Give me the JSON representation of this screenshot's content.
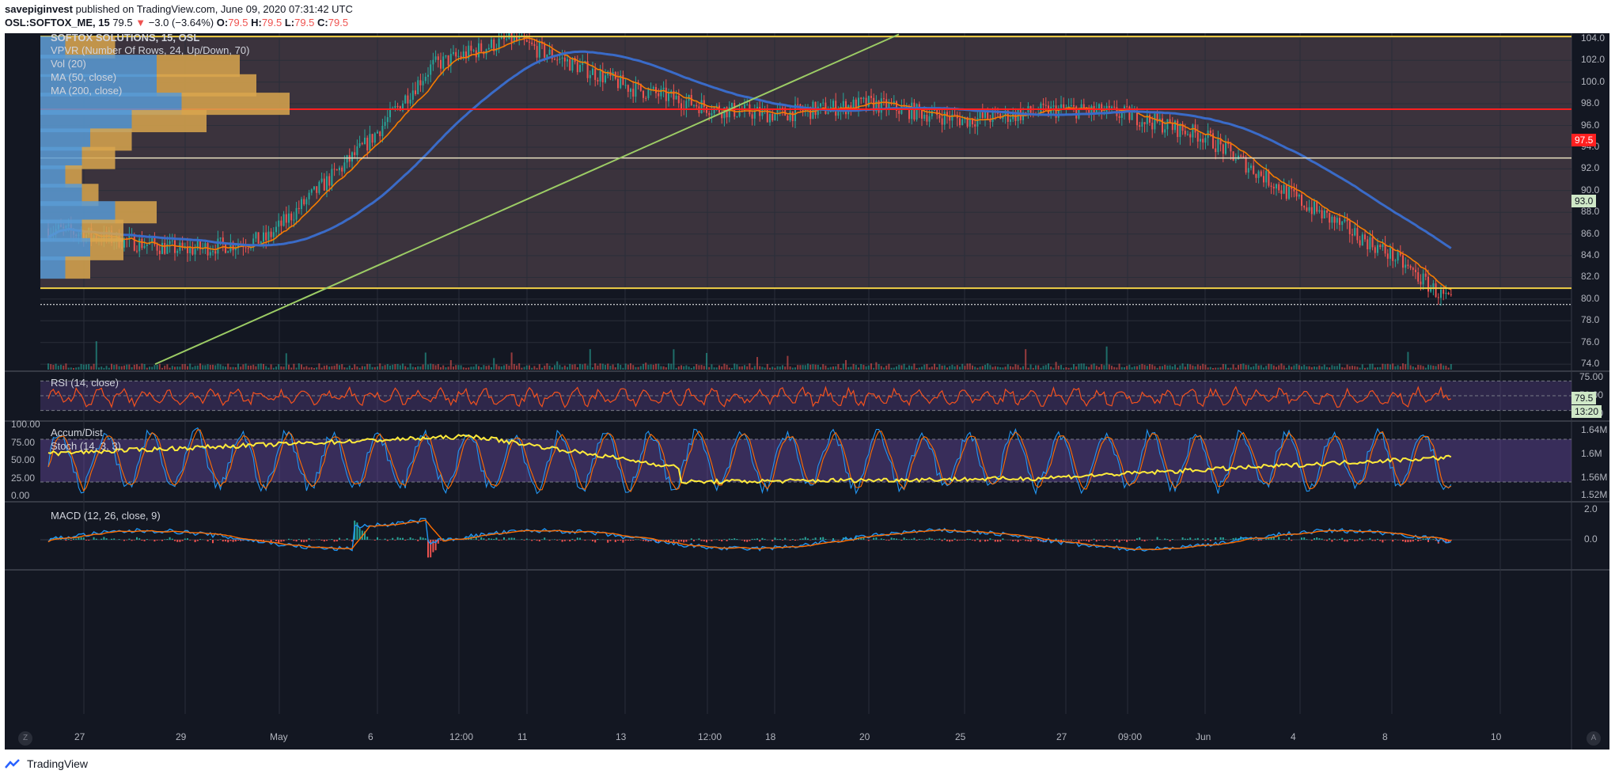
{
  "header": {
    "author": "savepiginvest",
    "published": " published on TradingView.com, June 09, 2020 07:31:42 UTC",
    "symbol": "OSL:SOFTOX_ME, 15",
    "last": "79.5",
    "change": "−3.0 (−3.64%)",
    "o": "79.5",
    "h": "79.5",
    "l": "79.5",
    "c": "79.5"
  },
  "legend": {
    "main": "SOFTOX SOLUTIONS, 15, OSL",
    "vpvr": "VPVR (Number Of Rows, 24, Up/Down, 70)",
    "vol": "Vol (20)",
    "ma50": "MA (50, close)",
    "ma200": "MA (200, close)",
    "rsi": "RSI (14, close)",
    "ad": "Accum/Dist",
    "stoch": "Stoch (14, 3, 3)",
    "macd": "MACD (12, 26, close, 9)"
  },
  "price_axis": [
    "104.0",
    "102.0",
    "100.0",
    "98.0",
    "96.0",
    "94.0",
    "92.0",
    "90.0",
    "88.0",
    "86.0",
    "84.0",
    "82.0",
    "80.0",
    "78.0",
    "76.0",
    "74.0"
  ],
  "price_tags": {
    "r1": "97.5",
    "r2": "93.0",
    "last": "79.5",
    "timer": "13:20"
  },
  "rsi_axis": [
    "75.00",
    "50.00",
    "25.00"
  ],
  "stoch_axis": [
    "100.00",
    "75.00",
    "50.00",
    "25.00",
    "0.00"
  ],
  "ad_axis": [
    "1.64M",
    "1.6M",
    "1.56M",
    "1.52M"
  ],
  "macd_axis": [
    "2.0",
    "0.0"
  ],
  "time_axis": [
    "27",
    "29",
    "May",
    "6",
    "12:00",
    "11",
    "13",
    "12:00",
    "18",
    "20",
    "25",
    "27",
    "09:00",
    "Jun",
    "4",
    "8",
    "10"
  ],
  "corners": {
    "left": "Z",
    "right": "A"
  },
  "footer": {
    "brand": "TradingView"
  },
  "colors": {
    "bg": "#131722",
    "up": "#26a69a",
    "down": "#ef5350",
    "ma50": "#f57c00",
    "ma200": "#3a6bc8",
    "trend": "#9ccc65",
    "resistance": "#ff2020",
    "support": "#f2d046",
    "vpvr_up": "#5b9bd5",
    "vpvr_down": "#d9a64e",
    "rsi": "#f4511e",
    "stoch_k": "#2196f3",
    "stoch_d": "#ff6d00",
    "ad": "#ffeb3b"
  },
  "chart_data": {
    "type": "candlestick",
    "symbol": "OSL:SOFTOX_ME",
    "interval": "15",
    "ylim": [
      73.5,
      104.5
    ],
    "levels": [
      {
        "name": "resistance",
        "value": 97.5
      },
      {
        "name": "level",
        "value": 93.0
      },
      {
        "name": "support",
        "value": 81.0
      },
      {
        "name": "top",
        "value": 104.2
      }
    ],
    "close_approx": [
      {
        "x": "27",
        "y": 86.5
      },
      {
        "x": "29",
        "y": 84.5
      },
      {
        "x": "May",
        "y": 85.5
      },
      {
        "x": "6",
        "y": 94.5
      },
      {
        "x": "12:00",
        "y": 101.5
      },
      {
        "x": "11",
        "y": 104.0
      },
      {
        "x": "13",
        "y": 99.5
      },
      {
        "x": "12:00",
        "y": 97.5
      },
      {
        "x": "18",
        "y": 97.0
      },
      {
        "x": "20",
        "y": 98.0
      },
      {
        "x": "25",
        "y": 96.5
      },
      {
        "x": "27",
        "y": 97.5
      },
      {
        "x": "09:00",
        "y": 97.0
      },
      {
        "x": "Jun",
        "y": 95.0
      },
      {
        "x": "4",
        "y": 89.0
      },
      {
        "x": "8",
        "y": 84.0
      },
      {
        "x": "last",
        "y": 79.5
      }
    ],
    "vpvr_rows": [
      {
        "price": 103.2,
        "up": 0.3,
        "down": 0.6
      },
      {
        "price": 101.5,
        "up": 1.4,
        "down": 1.0
      },
      {
        "price": 99.7,
        "up": 1.4,
        "down": 1.2
      },
      {
        "price": 98.0,
        "up": 1.7,
        "down": 1.3
      },
      {
        "price": 96.4,
        "up": 1.1,
        "down": 0.9
      },
      {
        "price": 94.7,
        "up": 0.6,
        "down": 0.5
      },
      {
        "price": 93.0,
        "up": 0.5,
        "down": 0.4
      },
      {
        "price": 91.3,
        "up": 0.3,
        "down": 0.2
      },
      {
        "price": 89.6,
        "up": 0.5,
        "down": 0.2
      },
      {
        "price": 88.0,
        "up": 0.9,
        "down": 0.5
      },
      {
        "price": 86.3,
        "up": 0.5,
        "down": 0.5
      },
      {
        "price": 84.6,
        "up": 0.6,
        "down": 0.4
      },
      {
        "price": 82.9,
        "up": 0.3,
        "down": 0.3
      }
    ],
    "rsi": {
      "upper": 70,
      "lower": 30,
      "last": 40
    },
    "stoch": {
      "upper": 80,
      "lower": 20,
      "last": 35
    },
    "accum_dist": {
      "last": "1.6M"
    },
    "macd": {
      "last": -0.3
    }
  }
}
